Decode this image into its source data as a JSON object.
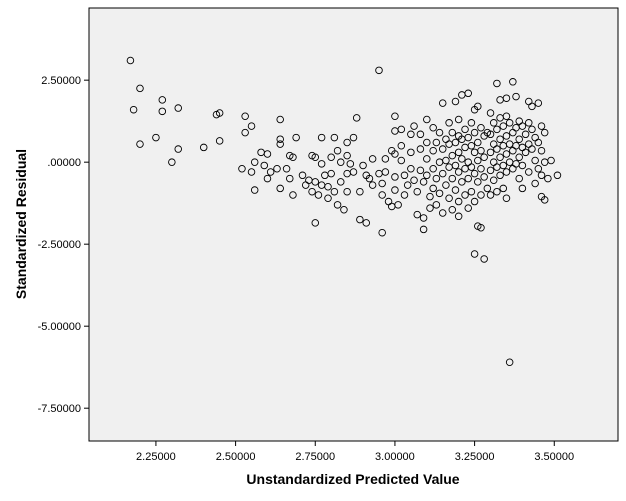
{
  "chart_data": {
    "type": "scatter",
    "title": "",
    "xlabel": "Unstandardized Predicted Value",
    "ylabel": "Standardized Residual",
    "xlim": [
      2.04,
      3.7
    ],
    "ylim": [
      -8.5,
      4.7
    ],
    "xticks": [
      {
        "value": 2.25,
        "label": "2.25000"
      },
      {
        "value": 2.5,
        "label": "2.50000"
      },
      {
        "value": 2.75,
        "label": "2.75000"
      },
      {
        "value": 3.0,
        "label": "3.00000"
      },
      {
        "value": 3.25,
        "label": "3.25000"
      },
      {
        "value": 3.5,
        "label": "3.50000"
      }
    ],
    "yticks": [
      {
        "value": 2.5,
        "label": "2.50000"
      },
      {
        "value": 0.0,
        "label": ".00000"
      },
      {
        "value": -2.5,
        "label": "-2.50000"
      },
      {
        "value": -5.0,
        "label": "-5.00000"
      },
      {
        "value": -7.5,
        "label": "-7.50000"
      }
    ],
    "grid": false,
    "plot_background": "#f0f0f0",
    "marker_color": "#000000",
    "points": [
      [
        2.17,
        3.1
      ],
      [
        2.2,
        2.25
      ],
      [
        2.18,
        1.6
      ],
      [
        2.2,
        0.55
      ],
      [
        2.25,
        0.75
      ],
      [
        2.27,
        1.9
      ],
      [
        2.27,
        1.55
      ],
      [
        2.3,
        0.0
      ],
      [
        2.32,
        1.65
      ],
      [
        2.32,
        0.4
      ],
      [
        2.4,
        0.45
      ],
      [
        2.44,
        1.45
      ],
      [
        2.45,
        0.65
      ],
      [
        2.45,
        1.5
      ],
      [
        2.52,
        -0.2
      ],
      [
        2.53,
        0.9
      ],
      [
        2.53,
        1.4
      ],
      [
        2.55,
        1.1
      ],
      [
        2.55,
        -0.3
      ],
      [
        2.56,
        0.0
      ],
      [
        2.56,
        -0.85
      ],
      [
        2.58,
        0.3
      ],
      [
        2.59,
        -0.1
      ],
      [
        2.6,
        0.25
      ],
      [
        2.6,
        -0.5
      ],
      [
        2.61,
        -0.3
      ],
      [
        2.63,
        -0.2
      ],
      [
        2.64,
        1.3
      ],
      [
        2.64,
        0.7
      ],
      [
        2.64,
        0.55
      ],
      [
        2.64,
        -0.8
      ],
      [
        2.66,
        -0.2
      ],
      [
        2.67,
        0.2
      ],
      [
        2.67,
        -0.5
      ],
      [
        2.68,
        0.15
      ],
      [
        2.68,
        -1.0
      ],
      [
        2.69,
        0.75
      ],
      [
        2.71,
        -0.4
      ],
      [
        2.72,
        -0.7
      ],
      [
        2.73,
        -0.55
      ],
      [
        2.74,
        0.2
      ],
      [
        2.74,
        -0.9
      ],
      [
        2.75,
        0.15
      ],
      [
        2.75,
        -1.85
      ],
      [
        2.75,
        -0.6
      ],
      [
        2.76,
        -1.0
      ],
      [
        2.77,
        0.75
      ],
      [
        2.77,
        -0.05
      ],
      [
        2.77,
        -0.7
      ],
      [
        2.78,
        -0.4
      ],
      [
        2.79,
        -0.75
      ],
      [
        2.79,
        -1.1
      ],
      [
        2.8,
        0.15
      ],
      [
        2.8,
        -0.35
      ],
      [
        2.81,
        -0.9
      ],
      [
        2.81,
        0.75
      ],
      [
        2.82,
        0.35
      ],
      [
        2.82,
        -1.3
      ],
      [
        2.83,
        0.0
      ],
      [
        2.83,
        -0.6
      ],
      [
        2.84,
        -1.45
      ],
      [
        2.85,
        0.6
      ],
      [
        2.85,
        0.2
      ],
      [
        2.85,
        -0.35
      ],
      [
        2.85,
        -0.9
      ],
      [
        2.86,
        -0.05
      ],
      [
        2.87,
        0.75
      ],
      [
        2.87,
        -0.3
      ],
      [
        2.88,
        1.35
      ],
      [
        2.89,
        -0.9
      ],
      [
        2.89,
        -1.75
      ],
      [
        2.9,
        -0.1
      ],
      [
        2.91,
        -0.4
      ],
      [
        2.91,
        -1.85
      ],
      [
        2.92,
        -0.5
      ],
      [
        2.93,
        0.1
      ],
      [
        2.93,
        -0.7
      ],
      [
        2.95,
        2.8
      ],
      [
        2.95,
        -0.35
      ],
      [
        2.96,
        -2.15
      ],
      [
        2.96,
        -1.0
      ],
      [
        2.96,
        -0.65
      ],
      [
        2.97,
        0.1
      ],
      [
        2.97,
        -0.3
      ],
      [
        2.98,
        -1.2
      ],
      [
        2.99,
        0.35
      ],
      [
        2.99,
        -1.35
      ],
      [
        3.0,
        1.4
      ],
      [
        3.0,
        0.95
      ],
      [
        3.0,
        0.25
      ],
      [
        3.0,
        -0.45
      ],
      [
        3.0,
        -0.85
      ],
      [
        3.01,
        -1.3
      ],
      [
        3.02,
        1.0
      ],
      [
        3.02,
        0.5
      ],
      [
        3.02,
        0.05
      ],
      [
        3.03,
        -0.4
      ],
      [
        3.03,
        -1.0
      ],
      [
        3.04,
        -0.7
      ],
      [
        3.05,
        0.85
      ],
      [
        3.05,
        0.3
      ],
      [
        3.05,
        -0.2
      ],
      [
        3.06,
        1.1
      ],
      [
        3.06,
        -0.55
      ],
      [
        3.07,
        -0.9
      ],
      [
        3.07,
        -1.6
      ],
      [
        3.08,
        0.85
      ],
      [
        3.08,
        0.4
      ],
      [
        3.08,
        -0.25
      ],
      [
        3.09,
        -0.6
      ],
      [
        3.09,
        -1.7
      ],
      [
        3.09,
        -2.05
      ],
      [
        3.1,
        1.3
      ],
      [
        3.1,
        0.6
      ],
      [
        3.1,
        0.1
      ],
      [
        3.1,
        -0.4
      ],
      [
        3.11,
        -1.05
      ],
      [
        3.11,
        -1.4
      ],
      [
        3.12,
        1.05
      ],
      [
        3.12,
        0.35
      ],
      [
        3.12,
        -0.2
      ],
      [
        3.12,
        -0.8
      ],
      [
        3.13,
        0.6
      ],
      [
        3.13,
        -0.5
      ],
      [
        3.13,
        -1.3
      ],
      [
        3.14,
        0.9
      ],
      [
        3.14,
        0.0
      ],
      [
        3.14,
        -0.95
      ],
      [
        3.15,
        1.8
      ],
      [
        3.15,
        0.4
      ],
      [
        3.15,
        -0.35
      ],
      [
        3.15,
        -1.55
      ],
      [
        3.16,
        0.7
      ],
      [
        3.16,
        0.05
      ],
      [
        3.16,
        -0.7
      ],
      [
        3.17,
        1.2
      ],
      [
        3.17,
        0.55
      ],
      [
        3.17,
        -0.15
      ],
      [
        3.17,
        -1.1
      ],
      [
        3.18,
        0.9
      ],
      [
        3.18,
        0.2
      ],
      [
        3.18,
        -0.5
      ],
      [
        3.18,
        -1.45
      ],
      [
        3.19,
        1.85
      ],
      [
        3.19,
        0.6
      ],
      [
        3.19,
        -0.1
      ],
      [
        3.19,
        -0.85
      ],
      [
        3.2,
        1.3
      ],
      [
        3.2,
        0.8
      ],
      [
        3.2,
        0.3
      ],
      [
        3.2,
        -0.3
      ],
      [
        3.2,
        -1.2
      ],
      [
        3.2,
        -1.65
      ],
      [
        3.21,
        2.05
      ],
      [
        3.21,
        0.7
      ],
      [
        3.21,
        0.1
      ],
      [
        3.21,
        -0.6
      ],
      [
        3.22,
        1.0
      ],
      [
        3.22,
        0.45
      ],
      [
        3.22,
        -0.2
      ],
      [
        3.22,
        -1.0
      ],
      [
        3.23,
        2.1
      ],
      [
        3.23,
        0.75
      ],
      [
        3.23,
        0.0
      ],
      [
        3.23,
        -0.5
      ],
      [
        3.23,
        -1.4
      ],
      [
        3.24,
        1.2
      ],
      [
        3.24,
        0.5
      ],
      [
        3.24,
        -0.15
      ],
      [
        3.24,
        -0.9
      ],
      [
        3.25,
        1.6
      ],
      [
        3.25,
        0.9
      ],
      [
        3.25,
        0.3
      ],
      [
        3.25,
        -0.35
      ],
      [
        3.25,
        -1.2
      ],
      [
        3.25,
        -2.8
      ],
      [
        3.26,
        1.7
      ],
      [
        3.26,
        0.6
      ],
      [
        3.26,
        0.05
      ],
      [
        3.26,
        -0.6
      ],
      [
        3.26,
        -1.95
      ],
      [
        3.27,
        1.05
      ],
      [
        3.27,
        0.35
      ],
      [
        3.27,
        -0.2
      ],
      [
        3.27,
        -1.0
      ],
      [
        3.27,
        -2.0
      ],
      [
        3.28,
        0.8
      ],
      [
        3.28,
        0.15
      ],
      [
        3.28,
        -0.45
      ],
      [
        3.28,
        -2.95
      ],
      [
        3.29,
        0.9
      ],
      [
        3.29,
        -0.8
      ],
      [
        3.3,
        1.5
      ],
      [
        3.3,
        0.85
      ],
      [
        3.3,
        0.3
      ],
      [
        3.3,
        -0.25
      ],
      [
        3.3,
        -1.0
      ],
      [
        3.31,
        1.2
      ],
      [
        3.31,
        0.55
      ],
      [
        3.31,
        0.0
      ],
      [
        3.31,
        -0.55
      ],
      [
        3.32,
        2.4
      ],
      [
        3.32,
        1.0
      ],
      [
        3.32,
        0.4
      ],
      [
        3.32,
        -0.15
      ],
      [
        3.32,
        -0.9
      ],
      [
        3.33,
        1.9
      ],
      [
        3.33,
        1.35
      ],
      [
        3.33,
        0.7
      ],
      [
        3.33,
        0.15
      ],
      [
        3.33,
        -0.4
      ],
      [
        3.34,
        1.1
      ],
      [
        3.34,
        0.5
      ],
      [
        3.34,
        -0.1
      ],
      [
        3.34,
        -0.8
      ],
      [
        3.35,
        1.95
      ],
      [
        3.35,
        1.4
      ],
      [
        3.35,
        0.8
      ],
      [
        3.35,
        0.25
      ],
      [
        3.35,
        -0.3
      ],
      [
        3.35,
        -1.1
      ],
      [
        3.36,
        -6.1
      ],
      [
        3.36,
        1.2
      ],
      [
        3.36,
        0.55
      ],
      [
        3.36,
        0.0
      ],
      [
        3.37,
        2.45
      ],
      [
        3.37,
        0.9
      ],
      [
        3.37,
        0.35
      ],
      [
        3.37,
        -0.2
      ],
      [
        3.38,
        2.0
      ],
      [
        3.38,
        1.05
      ],
      [
        3.38,
        0.5
      ],
      [
        3.38,
        -0.05
      ],
      [
        3.39,
        1.25
      ],
      [
        3.39,
        0.7
      ],
      [
        3.39,
        0.15
      ],
      [
        3.39,
        -0.5
      ],
      [
        3.4,
        1.1
      ],
      [
        3.4,
        0.45
      ],
      [
        3.4,
        -0.1
      ],
      [
        3.4,
        -0.8
      ],
      [
        3.41,
        0.85
      ],
      [
        3.41,
        0.3
      ],
      [
        3.42,
        1.85
      ],
      [
        3.42,
        1.2
      ],
      [
        3.42,
        0.55
      ],
      [
        3.42,
        -0.3
      ],
      [
        3.43,
        1.7
      ],
      [
        3.43,
        1.0
      ],
      [
        3.43,
        0.4
      ],
      [
        3.44,
        0.75
      ],
      [
        3.44,
        0.05
      ],
      [
        3.44,
        -0.65
      ],
      [
        3.45,
        1.8
      ],
      [
        3.45,
        0.6
      ],
      [
        3.45,
        -0.2
      ],
      [
        3.46,
        1.1
      ],
      [
        3.46,
        0.35
      ],
      [
        3.46,
        -0.4
      ],
      [
        3.46,
        -1.05
      ],
      [
        3.47,
        0.9
      ],
      [
        3.47,
        0.0
      ],
      [
        3.47,
        -1.15
      ],
      [
        3.48,
        -0.5
      ],
      [
        3.49,
        0.05
      ],
      [
        3.51,
        -0.4
      ]
    ]
  }
}
